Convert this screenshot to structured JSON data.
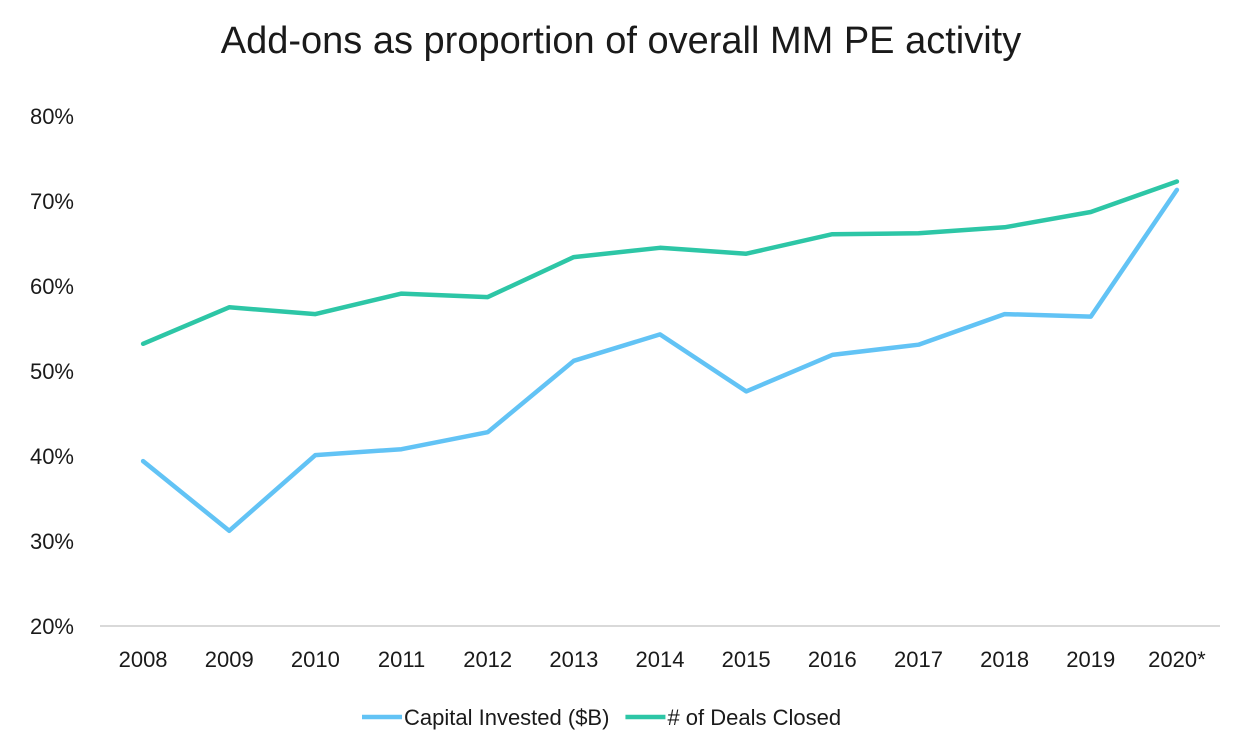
{
  "chart_data": {
    "type": "line",
    "title": "Add-ons as proportion of overall MM PE activity",
    "xlabel": "",
    "ylabel": "",
    "categories": [
      "2008",
      "2009",
      "2010",
      "2011",
      "2012",
      "2013",
      "2014",
      "2015",
      "2016",
      "2017",
      "2018",
      "2019",
      "2020*"
    ],
    "y_ticks": [
      "20%",
      "30%",
      "40%",
      "50%",
      "60%",
      "70%",
      "80%"
    ],
    "ylim": [
      20,
      80
    ],
    "grid": false,
    "legend_position": "bottom",
    "series": [
      {
        "name": "Capital Invested ($B)",
        "color": "#62c3f5",
        "values": [
          39.4,
          31.2,
          40.1,
          40.8,
          42.8,
          51.2,
          54.3,
          47.6,
          51.9,
          53.1,
          56.7,
          56.4,
          71.3
        ]
      },
      {
        "name": "# of Deals Closed",
        "color": "#2dc6a6",
        "values": [
          53.2,
          57.5,
          56.7,
          59.1,
          58.7,
          63.4,
          64.5,
          63.8,
          66.1,
          66.2,
          66.9,
          68.7,
          72.3
        ]
      }
    ]
  }
}
